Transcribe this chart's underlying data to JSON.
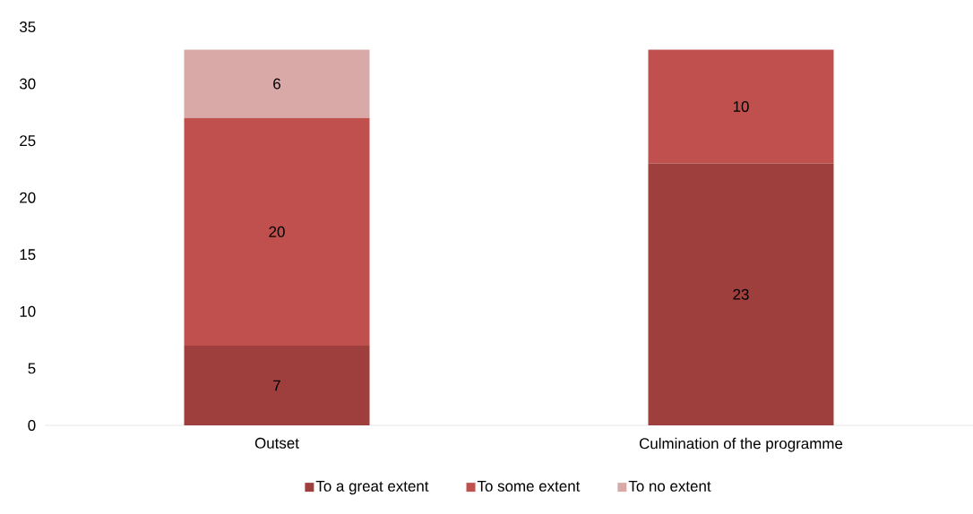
{
  "chart_data": {
    "type": "bar",
    "stacked": true,
    "categories": [
      "Outset",
      "Culmination of the programme"
    ],
    "series": [
      {
        "name": "To a great extent",
        "color": "#9e3f3d",
        "values": [
          7,
          23
        ],
        "value_labels": [
          "7",
          "23"
        ]
      },
      {
        "name": "To some extent",
        "color": "#c0504d",
        "values": [
          20,
          10
        ],
        "value_labels": [
          "20",
          "10"
        ]
      },
      {
        "name": "To no extent",
        "color": "#d9a9a8",
        "values": [
          6,
          null
        ],
        "value_labels": [
          "6",
          null
        ]
      }
    ],
    "ylim": [
      0,
      35
    ],
    "yticks": [
      0,
      5,
      10,
      15,
      20,
      25,
      30,
      35
    ],
    "grid": false,
    "legend": "bottom"
  }
}
